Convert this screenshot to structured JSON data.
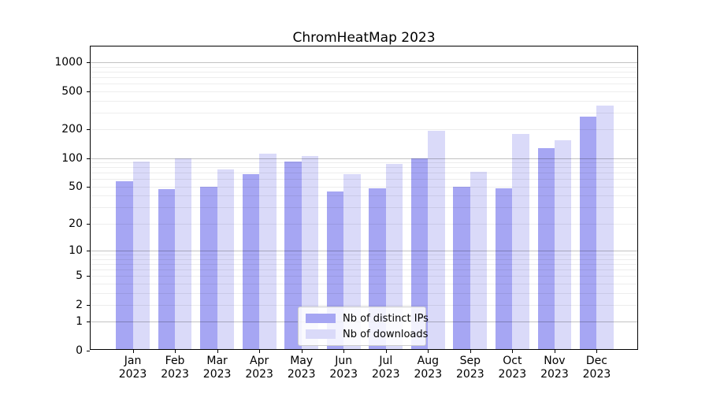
{
  "title": "ChromHeatMap 2023",
  "chart_data": {
    "type": "bar",
    "title": "ChromHeatMap 2023",
    "categories": [
      "Jan",
      "Feb",
      "Mar",
      "Apr",
      "May",
      "Jun",
      "Jul",
      "Aug",
      "Sep",
      "Oct",
      "Nov",
      "Dec"
    ],
    "year_label": "2023",
    "series": [
      {
        "name": "Nb of distinct IPs",
        "color": "#a6a6f3",
        "values": [
          55,
          45,
          48,
          65,
          89,
          43,
          46,
          95,
          48,
          46,
          123,
          260
        ]
      },
      {
        "name": "Nb of downloads",
        "color": "#dadaf9",
        "values": [
          89,
          96,
          73,
          108,
          102,
          65,
          83,
          188,
          69,
          173,
          148,
          343
        ]
      }
    ],
    "yscale": "log1p",
    "y_ticks": [
      0,
      1,
      2,
      5,
      10,
      20,
      50,
      100,
      200,
      500,
      1000
    ],
    "y_minor_gridlines": [
      2,
      3,
      4,
      5,
      6,
      7,
      8,
      9,
      20,
      30,
      40,
      50,
      60,
      70,
      80,
      90,
      200,
      300,
      400,
      500,
      600,
      700,
      800,
      900
    ],
    "y_major_gridlines": [
      1,
      10,
      100,
      1000
    ],
    "ylim": [
      0,
      1500
    ],
    "grid": "both",
    "legend_position": "lower center"
  },
  "colors": {
    "background": "#ffffff",
    "axis": "#000000",
    "grid_major": "rgba(0,0,0,0.24)",
    "grid_minor": "rgba(0,0,0,0.07)",
    "legend_border": "#cccccc",
    "text": "#000000"
  }
}
